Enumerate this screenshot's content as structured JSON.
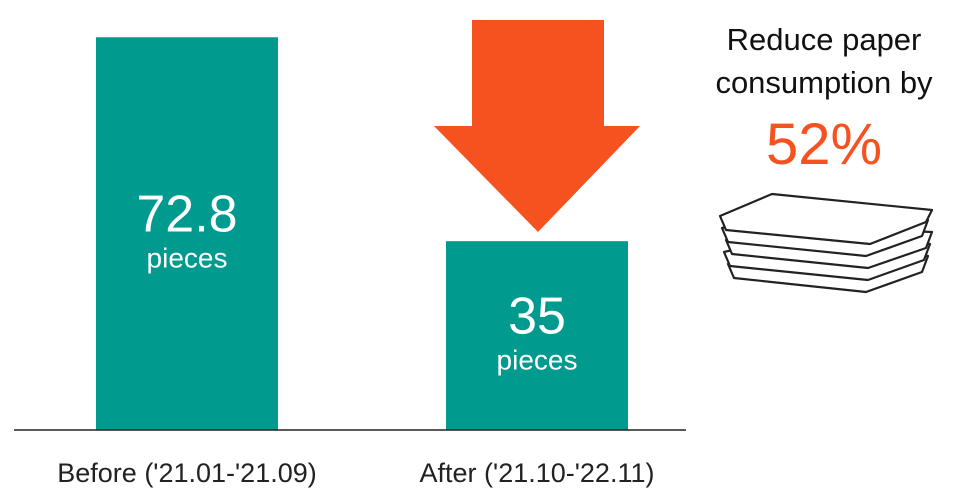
{
  "colors": {
    "bar": "#009a8e",
    "arrow": "#f5521f",
    "axis": "#222222",
    "accent": "#f5521f"
  },
  "chart_data": {
    "type": "bar",
    "categories": [
      "Before ('21.01-'21.09)",
      "After ('21.10-'22.11)"
    ],
    "values": [
      72.8,
      35
    ],
    "value_labels": [
      "72.8",
      "35"
    ],
    "unit": "pieces",
    "ylim": [
      0,
      76
    ],
    "grid": false,
    "legend": "none"
  },
  "callout": {
    "line1": "Reduce paper",
    "line2": "consumption by",
    "percent": "52%",
    "arrow_icon": "down-arrow-icon",
    "image_icon": "paper-stack-icon"
  }
}
